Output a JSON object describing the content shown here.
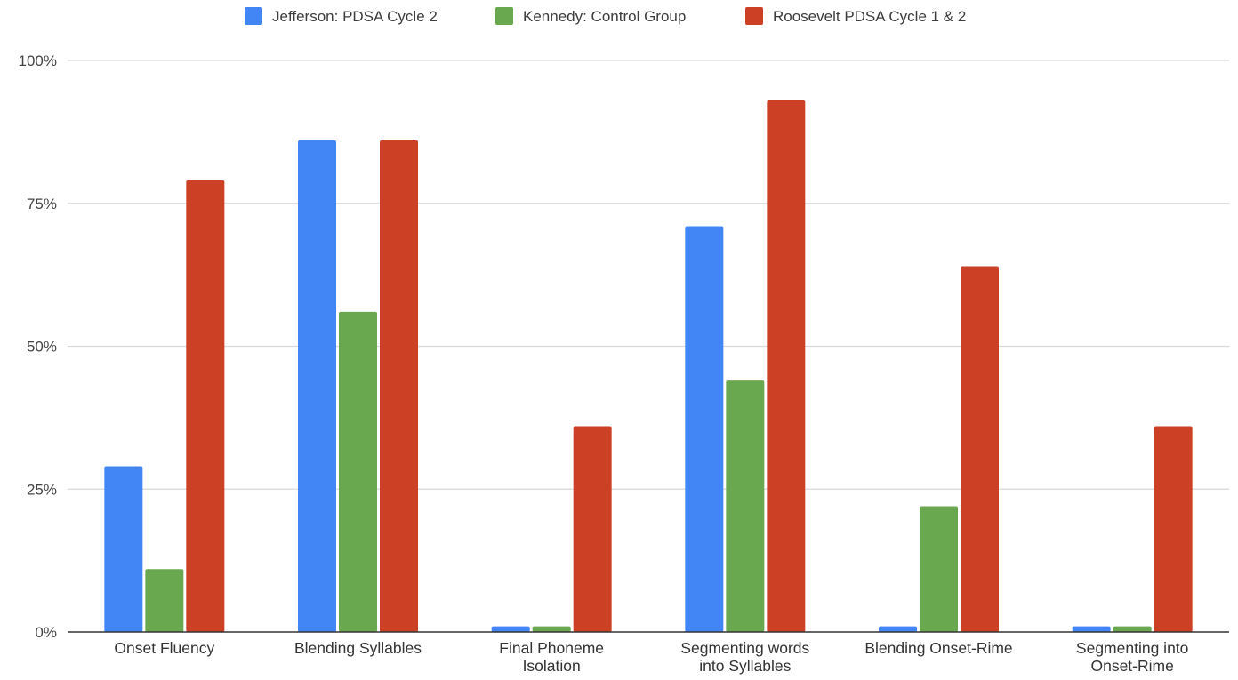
{
  "chart_data": {
    "type": "bar",
    "title": "",
    "xlabel": "",
    "ylabel": "",
    "ylim": [
      0,
      1
    ],
    "grid": true,
    "legend_position": "top",
    "yticks": [
      {
        "value": 0,
        "label": "0%"
      },
      {
        "value": 0.25,
        "label": "25%"
      },
      {
        "value": 0.5,
        "label": "50%"
      },
      {
        "value": 0.75,
        "label": "75%"
      },
      {
        "value": 1.0,
        "label": "100%"
      }
    ],
    "categories": [
      [
        "Onset Fluency"
      ],
      [
        "Blending Syllables"
      ],
      [
        "Final Phoneme",
        "Isolation"
      ],
      [
        "Segmenting words",
        "into Syllables"
      ],
      [
        "Blending Onset-Rime"
      ],
      [
        "Segmenting into",
        "Onset-Rime"
      ]
    ],
    "series": [
      {
        "name": "Jefferson: PDSA Cycle 2",
        "color": "#4285f4",
        "values": [
          0.29,
          0.86,
          0.01,
          0.71,
          0.01,
          0.01
        ]
      },
      {
        "name": "Kennedy: Control Group",
        "color": "#6aa84f",
        "values": [
          0.11,
          0.56,
          0.01,
          0.44,
          0.22,
          0.01
        ]
      },
      {
        "name": "Roosevelt PDSA Cycle 1 & 2",
        "color": "#cc4125",
        "values": [
          0.79,
          0.86,
          0.36,
          0.93,
          0.64,
          0.36
        ]
      }
    ]
  }
}
